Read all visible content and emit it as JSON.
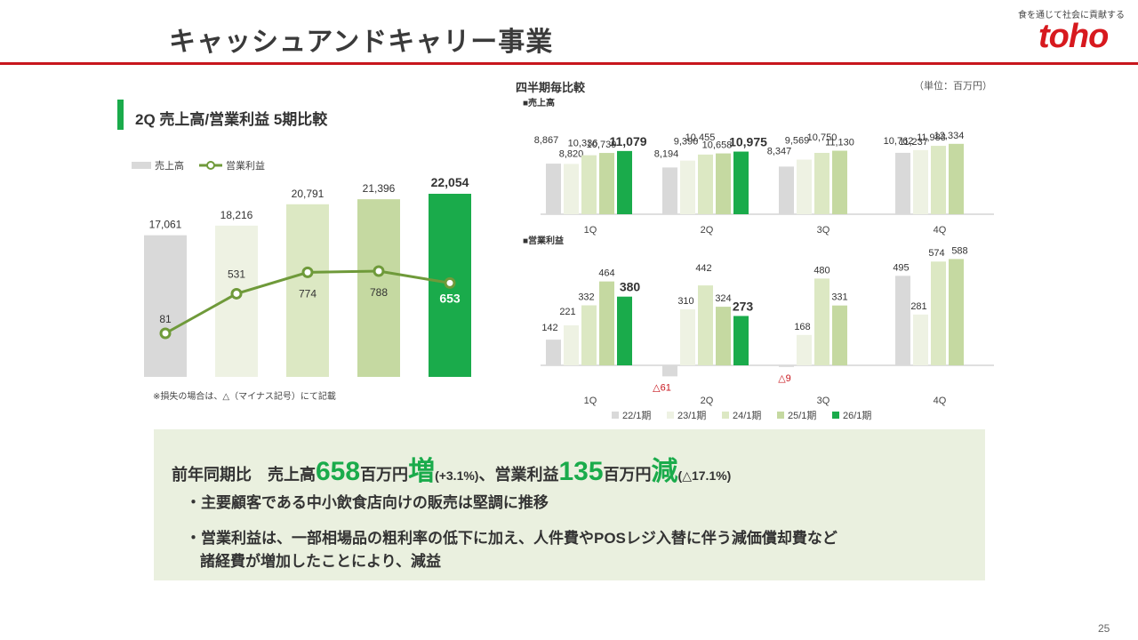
{
  "header": {
    "title": "キャッシュアンドキャリー事業",
    "tagline": "食を通じて社会に貢献する",
    "logo": "toho"
  },
  "left": {
    "section_title": "2Q 売上高/営業利益 5期比較",
    "legend_sales": "売上高",
    "legend_profit": "営業利益",
    "footnote": "※損失の場合は、△（マイナス記号）にて記載"
  },
  "right": {
    "title": "四半期毎比較",
    "unit": "（単位：百万円）",
    "sales_label": "■売上高",
    "profit_label": "■営業利益"
  },
  "summary": {
    "prefix": "前年同期比　売上高",
    "sales_diff": "658",
    "unit1": "百万円",
    "sales_dir": "増",
    "sales_pct": "(+3.1%)",
    "mid": "、営業利益",
    "profit_diff": "135",
    "unit2": "百万円",
    "profit_dir": "減",
    "profit_pct": "(△17.1%)",
    "bullet1": "・主要顧客である中小飲食店向けの販売は堅調に推移",
    "bullet2": "・営業利益は、一部相場品の粗利率の低下に加え、人件費やPOSレジ入替に伴う減価償却費など",
    "bullet2_cont": "諸経費が増加したことにより、減益"
  },
  "page_number": "25",
  "colors": {
    "accent_green": "#1aab4b",
    "red": "#c8161d",
    "line_green": "#6f9a3a",
    "p22": "#d9d9d9",
    "p23": "#eef2e3",
    "p24": "#dce8c3",
    "p25": "#c5d9a1",
    "p26": "#1aab4b"
  },
  "chart_data": [
    {
      "type": "bar",
      "title": "2Q 売上高/営業利益 5期比較",
      "series": [
        {
          "name": "売上高",
          "type": "bar",
          "values": [
            17061,
            18216,
            20791,
            21396,
            22054
          ],
          "labels": [
            "17,061",
            "18,216",
            "20,791",
            "21,396",
            "22,054"
          ]
        },
        {
          "name": "営業利益",
          "type": "line",
          "values": [
            81,
            531,
            774,
            788,
            653
          ],
          "labels": [
            "81",
            "531",
            "774",
            "788",
            "653"
          ]
        }
      ]
    },
    {
      "type": "bar",
      "title": "売上高",
      "categories": [
        "1Q",
        "2Q",
        "3Q",
        "4Q"
      ],
      "series": [
        {
          "name": "22/1期",
          "values": [
            8867,
            8194,
            8347,
            10762
          ],
          "labels": [
            "8,867",
            "8,194",
            "8,347",
            "10,762"
          ]
        },
        {
          "name": "23/1期",
          "values": [
            8820,
            9396,
            9569,
            11237
          ],
          "labels": [
            "8,820",
            "9,396",
            "9,569",
            "11,237"
          ]
        },
        {
          "name": "24/1期",
          "values": [
            10336,
            10455,
            10750,
            11983
          ],
          "labels": [
            "10,336",
            "10,455",
            "10,750",
            "11,983"
          ]
        },
        {
          "name": "25/1期",
          "values": [
            10739,
            10658,
            11130,
            12334
          ],
          "labels": [
            "10,739",
            "10,658",
            "11,130",
            "12,334"
          ]
        },
        {
          "name": "26/1期",
          "values": [
            11079,
            10975,
            null,
            null
          ],
          "labels": [
            "11,079",
            "10,975",
            "",
            ""
          ]
        }
      ]
    },
    {
      "type": "bar",
      "title": "営業利益",
      "categories": [
        "1Q",
        "2Q",
        "3Q",
        "4Q"
      ],
      "series": [
        {
          "name": "22/1期",
          "values": [
            142,
            -61,
            -9,
            495
          ],
          "labels": [
            "142",
            "△61",
            "△9",
            "495"
          ]
        },
        {
          "name": "23/1期",
          "values": [
            221,
            310,
            168,
            281
          ],
          "labels": [
            "221",
            "310",
            "168",
            "281"
          ]
        },
        {
          "name": "24/1期",
          "values": [
            332,
            442,
            480,
            574
          ],
          "labels": [
            "332",
            "442",
            "480",
            "574"
          ]
        },
        {
          "name": "25/1期",
          "values": [
            464,
            324,
            331,
            588
          ],
          "labels": [
            "464",
            "324",
            "331",
            "588"
          ]
        },
        {
          "name": "26/1期",
          "values": [
            380,
            273,
            null,
            null
          ],
          "labels": [
            "380",
            "273",
            "",
            ""
          ]
        }
      ]
    }
  ]
}
